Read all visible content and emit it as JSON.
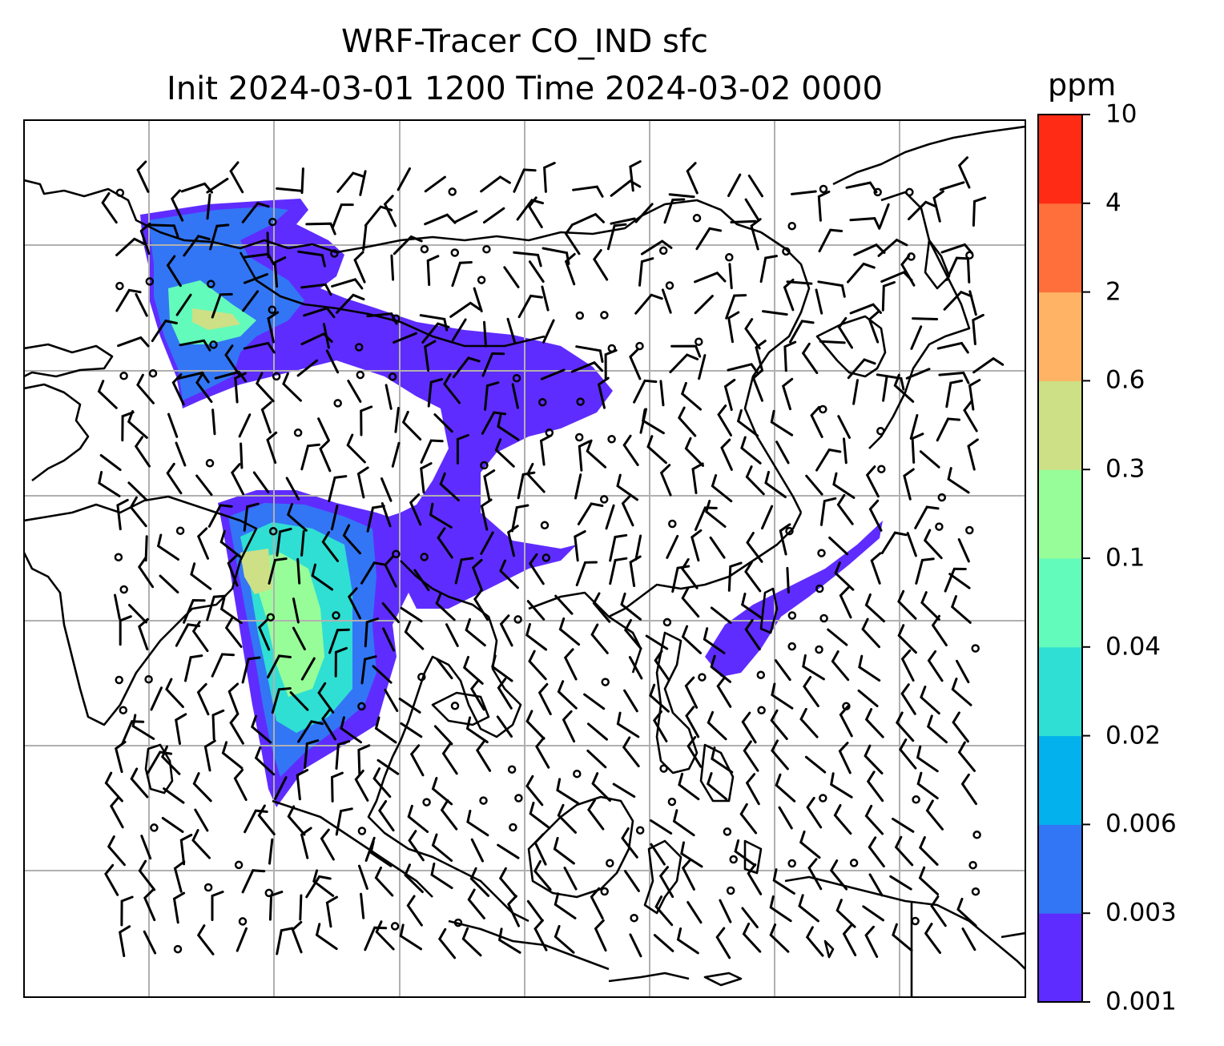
{
  "title_line1": "WRF-Tracer CO_IND sfc",
  "title_line2": "Init 2024-03-01 1200 Time 2024-03-02 0000",
  "colorbar": {
    "unit": "ppm",
    "levels": [
      "0.001",
      "0.003",
      "0.006",
      "0.02",
      "0.04",
      "0.1",
      "0.3",
      "0.6",
      "2",
      "4",
      "10"
    ],
    "colors": [
      "#5f2cff",
      "#3276f5",
      "#03b1ec",
      "#2fdfd3",
      "#63fbbb",
      "#97fd98",
      "#cde085",
      "#feb365",
      "#ff6f3b",
      "#ff2b15"
    ]
  },
  "map": {
    "grid_color": "#b0b0b0",
    "coastline_color": "#000000",
    "wind_barb_color": "#000000"
  }
}
